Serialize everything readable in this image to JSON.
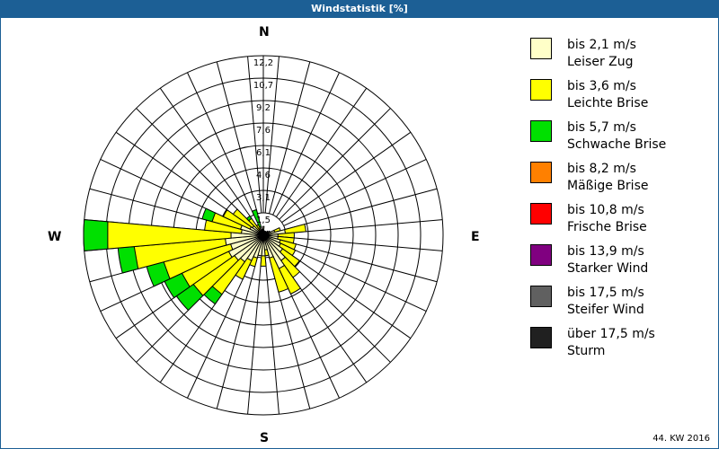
{
  "title": "Windstatistik [%]",
  "footer": "44. KW 2016",
  "compass": {
    "n": "N",
    "e": "E",
    "s": "S",
    "w": "W"
  },
  "legend": [
    {
      "color": "#ffffc8",
      "line1": "bis 2,1 m/s",
      "line2": "Leiser Zug"
    },
    {
      "color": "#ffff00",
      "line1": "bis 3,6 m/s",
      "line2": "Leichte Brise"
    },
    {
      "color": "#00e000",
      "line1": "bis 5,7 m/s",
      "line2": "Schwache Brise"
    },
    {
      "color": "#ff8000",
      "line1": "bis 8,2 m/s",
      "line2": "Mäßige Brise"
    },
    {
      "color": "#ff0000",
      "line1": "bis 10,8 m/s",
      "line2": "Frische Brise"
    },
    {
      "color": "#800080",
      "line1": "bis 13,9 m/s",
      "line2": "Starker Wind"
    },
    {
      "color": "#606060",
      "line1": "bis 17,5 m/s",
      "line2": "Steifer Wind"
    },
    {
      "color": "#202020",
      "line1": "über 17,5 m/s",
      "line2": "Sturm"
    }
  ],
  "chart_data": {
    "type": "wind-rose",
    "title": "Windstatistik [%]",
    "radial_ticks": [
      "1,5",
      "3,1",
      "4,6",
      "6,1",
      "7,6",
      "9,2",
      "10,7",
      "12,2"
    ],
    "radial_max": 12.2,
    "sector_width_deg": 10,
    "series_names": [
      "bis 2,1 m/s",
      "bis 3,6 m/s",
      "bis 5,7 m/s"
    ],
    "sectors": [
      {
        "dir": 0,
        "cum": [
          0.6,
          0.6,
          0.6
        ]
      },
      {
        "dir": 10,
        "cum": [
          0.3,
          0.3,
          0.3
        ]
      },
      {
        "dir": 20,
        "cum": [
          0.3,
          0.3,
          0.3
        ]
      },
      {
        "dir": 30,
        "cum": [
          0.3,
          0.3,
          0.3
        ]
      },
      {
        "dir": 40,
        "cum": [
          0.3,
          0.3,
          0.3
        ]
      },
      {
        "dir": 50,
        "cum": [
          0.4,
          0.4,
          0.4
        ]
      },
      {
        "dir": 60,
        "cum": [
          0.5,
          0.5,
          0.5
        ]
      },
      {
        "dir": 70,
        "cum": [
          0.8,
          1.2,
          1.2
        ]
      },
      {
        "dir": 80,
        "cum": [
          1.5,
          2.9,
          2.9
        ]
      },
      {
        "dir": 90,
        "cum": [
          1.0,
          2.1,
          2.1
        ]
      },
      {
        "dir": 100,
        "cum": [
          1.0,
          2.1,
          2.1
        ]
      },
      {
        "dir": 110,
        "cum": [
          1.2,
          2.3,
          2.3
        ]
      },
      {
        "dir": 120,
        "cum": [
          1.3,
          2.4,
          2.4
        ]
      },
      {
        "dir": 130,
        "cum": [
          1.6,
          3.0,
          3.0
        ]
      },
      {
        "dir": 140,
        "cum": [
          2.1,
          3.5,
          3.5
        ]
      },
      {
        "dir": 150,
        "cum": [
          2.5,
          4.4,
          4.4
        ]
      },
      {
        "dir": 160,
        "cum": [
          1.6,
          4.0,
          4.0
        ]
      },
      {
        "dir": 170,
        "cum": [
          1.0,
          1.4,
          1.4
        ]
      },
      {
        "dir": 180,
        "cum": [
          1.4,
          2.1,
          2.1
        ]
      },
      {
        "dir": 190,
        "cum": [
          1.4,
          1.4,
          1.4
        ]
      },
      {
        "dir": 200,
        "cum": [
          1.6,
          2.2,
          2.2
        ]
      },
      {
        "dir": 210,
        "cum": [
          1.9,
          3.3,
          3.3
        ]
      },
      {
        "dir": 220,
        "cum": [
          2.2,
          4.9,
          5.7
        ]
      },
      {
        "dir": 230,
        "cum": [
          2.4,
          5.8,
          7.2
        ]
      },
      {
        "dir": 240,
        "cum": [
          2.6,
          6.1,
          7.4
        ]
      },
      {
        "dir": 250,
        "cum": [
          2.3,
          7.0,
          8.2
        ]
      },
      {
        "dir": 260,
        "cum": [
          2.6,
          8.8,
          9.9
        ]
      },
      {
        "dir": 270,
        "cum": [
          2.2,
          10.6,
          12.2
        ]
      },
      {
        "dir": 280,
        "cum": [
          1.5,
          4.0,
          4.0
        ]
      },
      {
        "dir": 290,
        "cum": [
          1.6,
          3.6,
          4.3
        ]
      },
      {
        "dir": 300,
        "cum": [
          1.0,
          3.0,
          3.0
        ]
      },
      {
        "dir": 310,
        "cum": [
          0.9,
          2.5,
          2.5
        ]
      },
      {
        "dir": 320,
        "cum": [
          0.4,
          1.4,
          1.6
        ]
      },
      {
        "dir": 330,
        "cum": [
          0.5,
          0.8,
          0.8
        ]
      },
      {
        "dir": 340,
        "cum": [
          0.6,
          0.6,
          1.8
        ]
      },
      {
        "dir": 350,
        "cum": [
          0.4,
          0.4,
          0.4
        ]
      }
    ]
  }
}
